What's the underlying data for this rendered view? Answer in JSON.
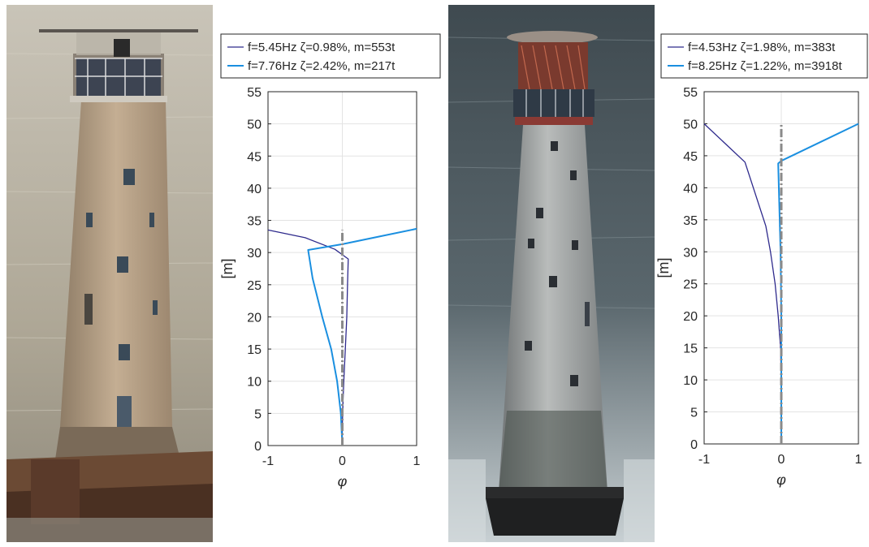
{
  "chart_data": [
    {
      "type": "line",
      "xlabel": "φ",
      "ylabel": "[m]",
      "xlim": [
        -1,
        1
      ],
      "ylim": [
        0,
        55
      ],
      "xticks": [
        "-1",
        "0",
        "1"
      ],
      "yticks": [
        "0",
        "5",
        "10",
        "15",
        "20",
        "25",
        "30",
        "35",
        "40",
        "45",
        "50",
        "55"
      ],
      "grid": true,
      "legend_position": "top",
      "series": [
        {
          "name": "f=5.45Hz ζ=0.98%, m=553t",
          "color": "#2e2a8c",
          "x": [
            0.0,
            0.0,
            0.01,
            0.02,
            0.04,
            0.06,
            0.07,
            0.08,
            -0.1,
            -0.5,
            -1.0
          ],
          "y": [
            0,
            3,
            7,
            10,
            15,
            20,
            25,
            29,
            30.5,
            32.3,
            33.5
          ]
        },
        {
          "name": "f=7.76Hz ζ=2.42%, m=217t",
          "color": "#1a8fe0",
          "x": [
            0.0,
            -0.02,
            -0.07,
            -0.15,
            -0.27,
            -0.4,
            -0.46,
            0.0,
            0.5,
            1.0
          ],
          "y": [
            0,
            5,
            10,
            15,
            20,
            26,
            30.4,
            31.3,
            32.5,
            33.7
          ]
        },
        {
          "name": "",
          "color": "#8a8a8a",
          "x": [
            0,
            0
          ],
          "y": [
            0,
            33.5
          ]
        }
      ]
    },
    {
      "type": "line",
      "xlabel": "φ",
      "ylabel": "[m]",
      "xlim": [
        -1,
        1
      ],
      "ylim": [
        0,
        55
      ],
      "xticks": [
        "-1",
        "0",
        "1"
      ],
      "yticks": [
        "0",
        "5",
        "10",
        "15",
        "20",
        "25",
        "30",
        "35",
        "40",
        "45",
        "50",
        "55"
      ],
      "grid": true,
      "legend_position": "top",
      "series": [
        {
          "name": "f=4.53Hz ζ=1.98%, m=383t",
          "color": "#2e2a8c",
          "x": [
            0.0,
            0.0,
            -0.01,
            -0.04,
            -0.08,
            -0.14,
            -0.2,
            -0.47,
            -1.0
          ],
          "y": [
            0,
            10,
            15,
            20,
            25,
            30,
            34,
            44,
            50
          ]
        },
        {
          "name": "f=8.25Hz ζ=1.22%, m=3918t",
          "color": "#1a8fe0",
          "x": [
            0.0,
            0.0,
            -0.01,
            -0.04,
            0.0,
            1.0
          ],
          "y": [
            0,
            20,
            30,
            43.8,
            44.2,
            50
          ]
        },
        {
          "name": "",
          "color": "#8a8a8a",
          "x": [
            0,
            0
          ],
          "y": [
            0,
            50
          ]
        }
      ]
    }
  ],
  "photos": [
    {
      "description_icon": "lighthouse-photo",
      "sea_color": "#b8b1a3",
      "tower_color": "#b79f86"
    },
    {
      "description_icon": "lighthouse-photo",
      "sea_color": "#4f5a5f",
      "tower_color": "#9fa2a2"
    }
  ]
}
